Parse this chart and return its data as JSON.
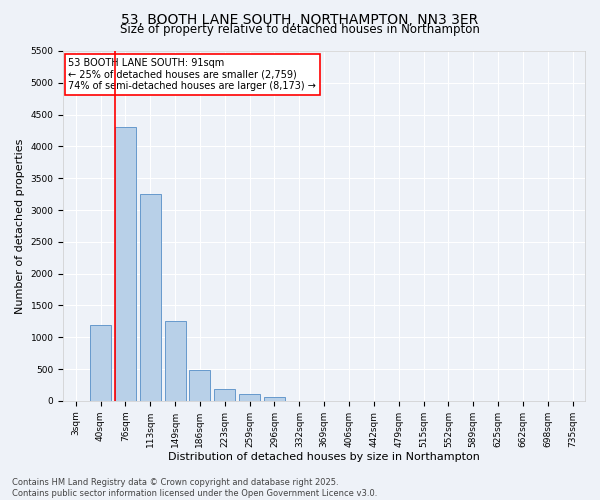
{
  "title1": "53, BOOTH LANE SOUTH, NORTHAMPTON, NN3 3ER",
  "title2": "Size of property relative to detached houses in Northampton",
  "xlabel": "Distribution of detached houses by size in Northampton",
  "ylabel": "Number of detached properties",
  "categories": [
    "3sqm",
    "40sqm",
    "76sqm",
    "113sqm",
    "149sqm",
    "186sqm",
    "223sqm",
    "259sqm",
    "296sqm",
    "332sqm",
    "369sqm",
    "406sqm",
    "442sqm",
    "479sqm",
    "515sqm",
    "552sqm",
    "589sqm",
    "625sqm",
    "662sqm",
    "698sqm",
    "735sqm"
  ],
  "values": [
    0,
    1200,
    4300,
    3250,
    1250,
    480,
    180,
    100,
    60,
    0,
    0,
    0,
    0,
    0,
    0,
    0,
    0,
    0,
    0,
    0,
    0
  ],
  "bar_color": "#b8d0e8",
  "bar_edge_color": "#6699cc",
  "vline_x": 2,
  "vline_color": "red",
  "annotation_text": "53 BOOTH LANE SOUTH: 91sqm\n← 25% of detached houses are smaller (2,759)\n74% of semi-detached houses are larger (8,173) →",
  "annotation_box_color": "white",
  "annotation_box_edge_color": "red",
  "ylim": [
    0,
    5500
  ],
  "yticks": [
    0,
    500,
    1000,
    1500,
    2000,
    2500,
    3000,
    3500,
    4000,
    4500,
    5000,
    5500
  ],
  "footer1": "Contains HM Land Registry data © Crown copyright and database right 2025.",
  "footer2": "Contains public sector information licensed under the Open Government Licence v3.0.",
  "bg_color": "#eef2f8",
  "plot_bg_color": "#eef2f8",
  "title1_fontsize": 10,
  "title2_fontsize": 8.5,
  "annotation_fontsize": 7,
  "xlabel_fontsize": 8,
  "ylabel_fontsize": 8,
  "tick_fontsize": 6.5,
  "footer_fontsize": 6
}
